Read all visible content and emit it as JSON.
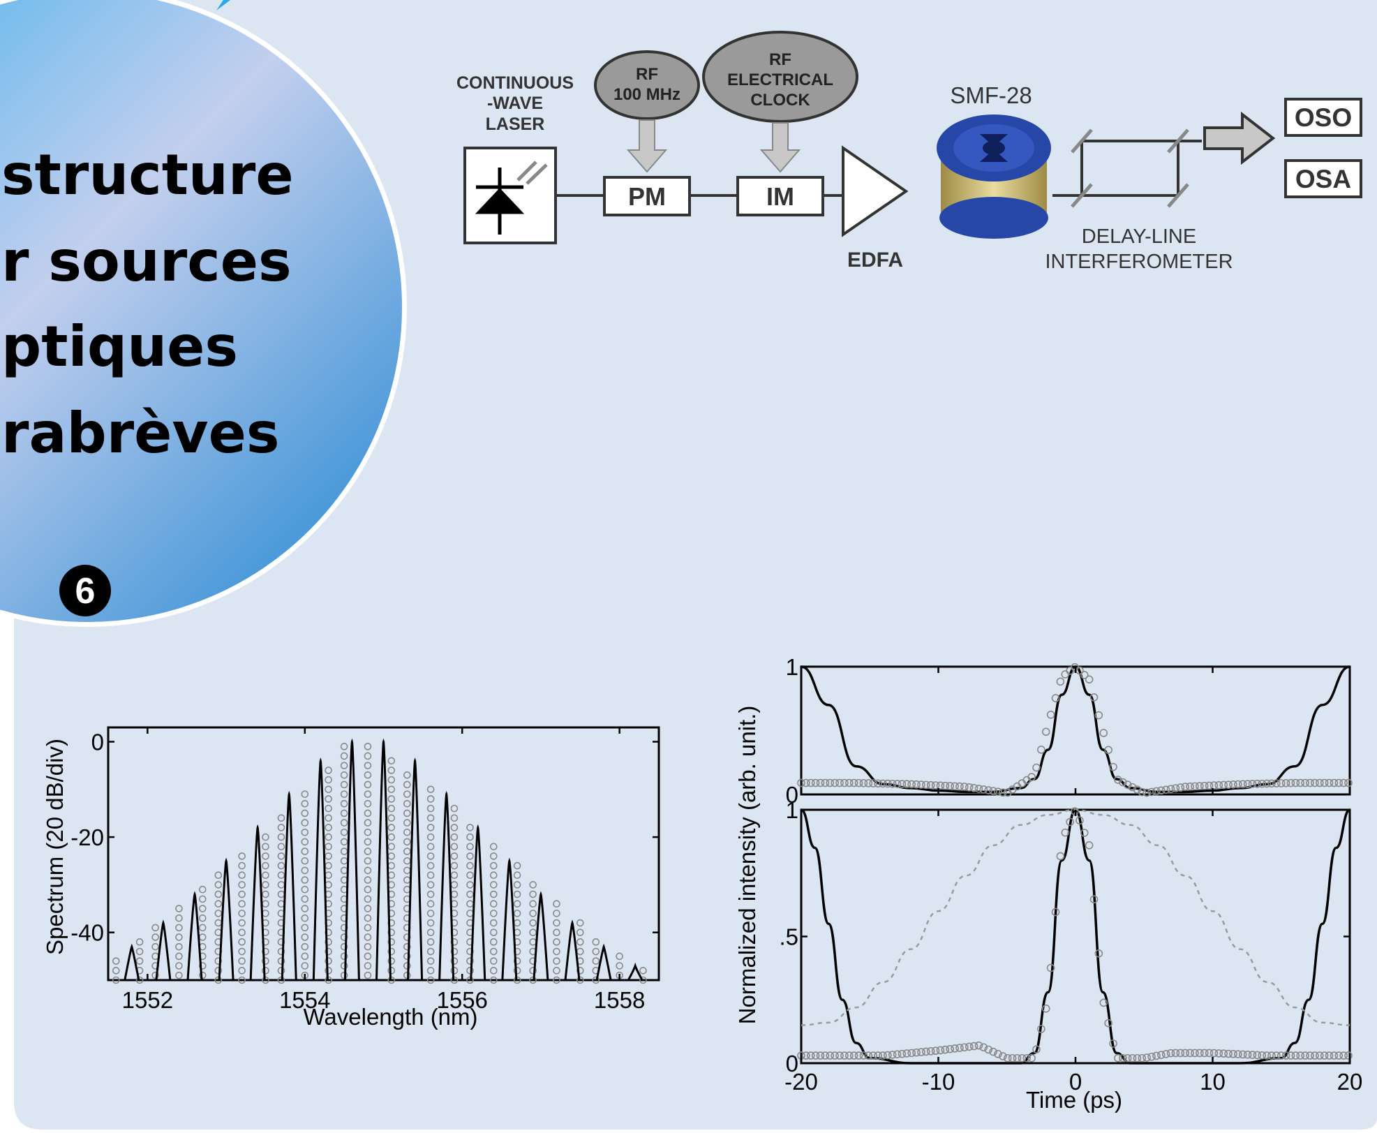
{
  "slide": {
    "title_lines": [
      " structure",
      "r sources",
      "ptiques",
      "rabrèves"
    ],
    "number_badge": "6"
  },
  "setup_diagram": {
    "laser_label": [
      "CONTINUOUS",
      "-WAVE",
      "LASER"
    ],
    "rf_source": [
      "RF",
      "100 MHz"
    ],
    "clock_source": [
      "RF",
      "ELECTRICAL",
      "CLOCK"
    ],
    "pm": "PM",
    "im": "IM",
    "edfa": "EDFA",
    "fiber": "SMF-28",
    "interferometer": [
      "DELAY-LINE",
      "INTERFEROMETER"
    ],
    "oso": "OSO",
    "osa": "OSA",
    "colors": {
      "spool_blue": "#2747a8",
      "spool_gold": "#c9b56a",
      "arrow_gray": "#c8c8c8",
      "source_gray": "#9a9a9a"
    }
  },
  "chart_data": [
    {
      "type": "scatter",
      "xlabel": "Wavelength (nm)",
      "ylabel": "Spectrum  (20 dB/div)",
      "xlim": [
        1551.5,
        1558.5
      ],
      "ylim": [
        -50,
        3
      ],
      "xticks": [
        "1552",
        "1554",
        "1556",
        "1558"
      ],
      "yticks": [
        "0",
        "-20",
        "-40"
      ],
      "series": [
        {
          "style": "black-solid-lines",
          "x": [
            1551.8,
            1552.2,
            1552.6,
            1553.0,
            1553.4,
            1553.8,
            1554.2,
            1554.6,
            1555.0,
            1555.4,
            1555.8,
            1556.2,
            1556.6,
            1557.0,
            1557.4,
            1557.8,
            1558.2
          ],
          "values": [
            -43,
            -38,
            -32,
            -25,
            -18,
            -11,
            -4,
            0,
            0,
            -4,
            -11,
            -18,
            -25,
            -32,
            -38,
            -43,
            -47
          ]
        },
        {
          "style": "gray-open-circles",
          "x": [
            1551.6,
            1551.9,
            1552.1,
            1552.4,
            1552.7,
            1552.9,
            1553.2,
            1553.5,
            1553.7,
            1554.0,
            1554.3,
            1554.5,
            1554.8,
            1555.1,
            1555.3,
            1555.6,
            1555.9,
            1556.1,
            1556.4,
            1556.7,
            1556.9,
            1557.2,
            1557.5,
            1557.7,
            1558.0,
            1558.3
          ],
          "values": [
            -46,
            -42,
            -39,
            -35,
            -31,
            -28,
            -24,
            -20,
            -16,
            -11,
            -6,
            -1,
            -1,
            -4,
            -7,
            -10,
            -14,
            -18,
            -22,
            -26,
            -30,
            -34,
            -38,
            -42,
            -45,
            -48
          ]
        }
      ]
    },
    {
      "type": "line",
      "title": "",
      "xlabel": "Time (ps)",
      "ylabel": "Normalized intensity (arb. unit.)",
      "xlim": [
        -20,
        20
      ],
      "xticks": [
        "-20",
        "-10",
        "0",
        "10",
        "20"
      ],
      "panels": [
        {
          "ylim": [
            0,
            1
          ],
          "yticks": [
            "0",
            "1"
          ],
          "series": [
            {
              "style": "black-solid",
              "x": [
                -20,
                -18,
                -16,
                -14,
                -12,
                -10,
                -8,
                -6,
                -4,
                -3,
                -2,
                -1,
                0,
                1,
                2,
                3,
                4,
                6,
                8,
                10,
                12,
                14,
                16,
                18,
                20
              ],
              "values": [
                1.0,
                0.7,
                0.22,
                0.08,
                0.05,
                0.03,
                0.02,
                0.02,
                0.05,
                0.12,
                0.35,
                0.78,
                1.0,
                0.78,
                0.35,
                0.12,
                0.05,
                0.02,
                0.02,
                0.03,
                0.05,
                0.08,
                0.22,
                0.7,
                1.0
              ]
            },
            {
              "style": "gray-circles",
              "x": [
                -20,
                -16,
                -12,
                -8,
                -5,
                -3,
                -2,
                -1,
                0,
                1,
                2,
                3,
                5,
                8,
                12,
                16,
                20
              ],
              "values": [
                0.09,
                0.09,
                0.08,
                0.06,
                0.01,
                0.15,
                0.55,
                0.92,
                1.0,
                0.9,
                0.5,
                0.12,
                0.01,
                0.06,
                0.08,
                0.09,
                0.09
              ]
            }
          ]
        },
        {
          "ylim": [
            0,
            1
          ],
          "yticks": [
            "0",
            ".5",
            "1"
          ],
          "series": [
            {
              "style": "black-solid",
              "x": [
                -20,
                -19,
                -18,
                -17,
                -16,
                -15,
                -12,
                -8,
                -4,
                -3,
                -2,
                -1,
                0,
                1,
                2,
                3,
                4,
                8,
                12,
                15,
                16,
                17,
                18,
                19,
                20
              ],
              "values": [
                1.0,
                0.85,
                0.55,
                0.25,
                0.08,
                0.02,
                0.0,
                0.0,
                0.0,
                0.04,
                0.28,
                0.8,
                1.0,
                0.8,
                0.28,
                0.04,
                0.0,
                0.0,
                0.0,
                0.02,
                0.08,
                0.25,
                0.55,
                0.85,
                1.0
              ]
            },
            {
              "style": "gray-circles",
              "x": [
                -20,
                -14,
                -10,
                -7,
                -5,
                -3,
                -2,
                -1,
                0,
                1,
                2,
                3,
                5,
                7,
                10,
                14,
                20
              ],
              "values": [
                0.03,
                0.03,
                0.05,
                0.07,
                0.02,
                0.02,
                0.25,
                0.88,
                1.0,
                0.86,
                0.25,
                0.02,
                0.02,
                0.04,
                0.04,
                0.03,
                0.03
              ]
            },
            {
              "style": "gray-dotted",
              "x": [
                -20,
                -18,
                -16,
                -14,
                -12,
                -10,
                -8,
                -6,
                -4,
                -2,
                0,
                2,
                4,
                6,
                8,
                10,
                12,
                14,
                16,
                18,
                20
              ],
              "values": [
                0.15,
                0.16,
                0.22,
                0.32,
                0.45,
                0.6,
                0.74,
                0.86,
                0.94,
                0.98,
                1.0,
                0.98,
                0.94,
                0.86,
                0.74,
                0.6,
                0.45,
                0.32,
                0.22,
                0.16,
                0.15
              ]
            }
          ]
        }
      ]
    }
  ]
}
